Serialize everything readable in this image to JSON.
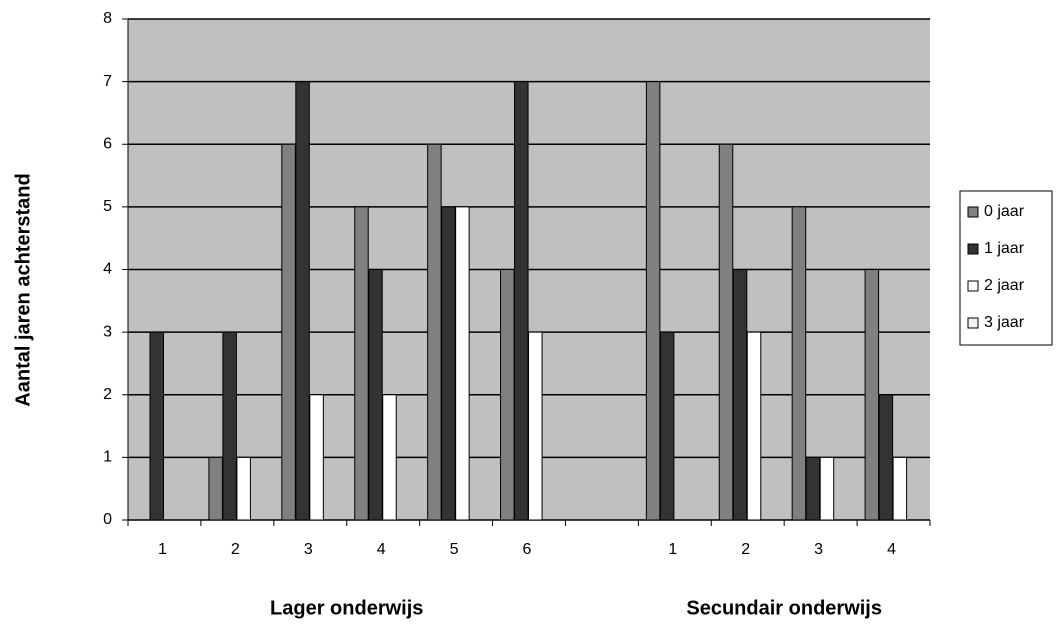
{
  "chart_data": {
    "type": "bar",
    "y_label": "Aantal jaren achterstand",
    "categories": [
      "1",
      "2",
      "3",
      "4",
      "5",
      "6",
      null,
      "1",
      "2",
      "3",
      "4"
    ],
    "groups": [
      "Lager onderwijs",
      "Secundair onderwijs"
    ],
    "series": [
      {
        "name": "0 jaar",
        "color": "#808080",
        "values": [
          0,
          1,
          6,
          5,
          6,
          4,
          null,
          7,
          6,
          5,
          4
        ]
      },
      {
        "name": "1 jaar",
        "color": "#333333",
        "values": [
          3,
          3,
          7,
          4,
          5,
          7,
          null,
          3,
          4,
          1,
          2
        ]
      },
      {
        "name": "2 jaar",
        "color": "#ffffff",
        "values": [
          0,
          1,
          2,
          2,
          5,
          3,
          null,
          0,
          3,
          1,
          1
        ]
      },
      {
        "name": "3 jaar",
        "color": "#f2f2f2",
        "values": [
          0,
          0,
          0,
          0,
          0,
          0,
          null,
          0,
          0,
          0,
          0
        ]
      }
    ],
    "ylim": [
      0,
      8
    ],
    "yticks": [
      0,
      1,
      2,
      3,
      4,
      5,
      6,
      7,
      8
    ],
    "grid": true,
    "legend": "right"
  }
}
